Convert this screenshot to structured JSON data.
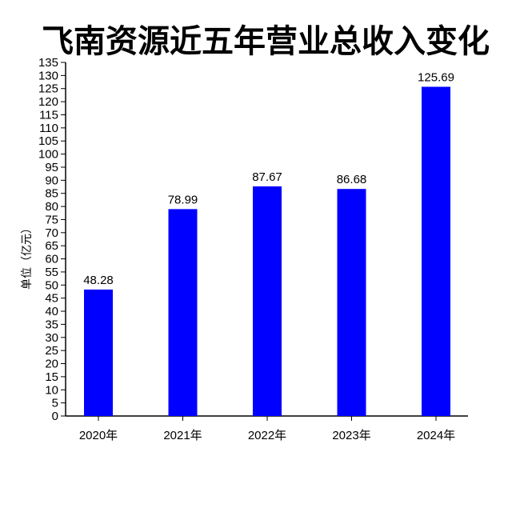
{
  "chart_data": {
    "type": "bar",
    "title": "飞南资源近五年营业总收入变化",
    "xlabel": "",
    "ylabel": "单位（亿元）",
    "categories": [
      "2020年",
      "2021年",
      "2022年",
      "2023年",
      "2024年"
    ],
    "values": [
      48.28,
      78.99,
      87.67,
      86.68,
      125.69
    ],
    "data_labels": [
      "48.28",
      "78.99",
      "87.67",
      "86.68",
      "125.69"
    ],
    "ylim": [
      0,
      135
    ],
    "ytick_step": 5,
    "bar_color": "#0000ff",
    "grid": false,
    "legend": "none"
  }
}
